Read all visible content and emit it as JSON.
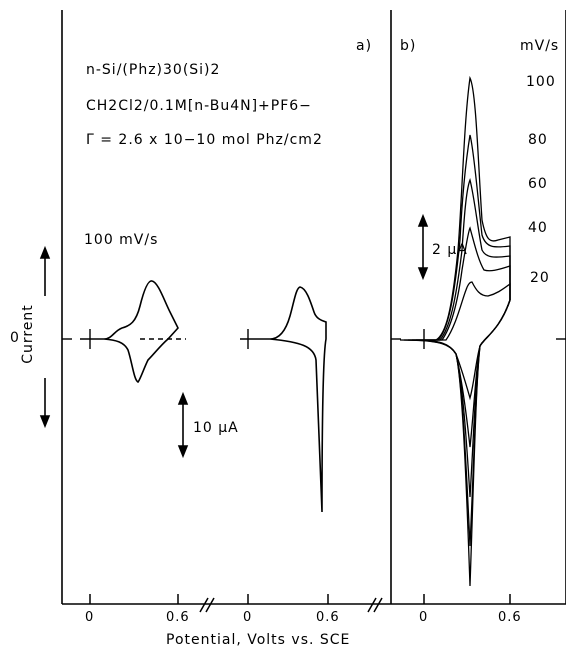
{
  "chart_data": [
    {
      "type": "line",
      "panel_label": "a)",
      "annotations": {
        "line1": "n-Si/(Phz)30(Si)2",
        "line2": "CH2Cl2/0.1M[n-Bu4N]+PF6−",
        "line3": "Γ = 2.6 x 10−10 mol Phz/cm2",
        "scan_rate": "100 mV/s",
        "scale_bar": "10 μA"
      },
      "xlabel": "Potential, Volts vs. SCE",
      "ylabel": "Current",
      "y_zero_label": "0",
      "x_ticks": [
        "0",
        "0.6",
        "0",
        "0.6"
      ],
      "series": [
        {
          "x": [
            0.0,
            0.15,
            0.25,
            0.35,
            0.42,
            0.48,
            0.55,
            0.6,
            0.55,
            0.45,
            0.35,
            0.3,
            0.25,
            0.15,
            0.0
          ],
          "y": [
            0,
            0.05,
            0.3,
            1.5,
            3.0,
            2.2,
            1.0,
            0.7,
            0.4,
            -0.2,
            -1.2,
            -2.4,
            -1.0,
            -0.1,
            0
          ]
        },
        {
          "x": [
            0.0,
            0.2,
            0.3,
            0.38,
            0.44,
            0.5,
            0.55,
            0.56,
            0.55,
            0.5,
            0.4,
            0.3,
            0.2,
            0.0
          ],
          "y": [
            0,
            0.05,
            0.5,
            2.0,
            2.6,
            2.0,
            1.2,
            -1.0,
            -9.0,
            -0.3,
            -0.1,
            -0.05,
            0,
            0
          ]
        }
      ]
    },
    {
      "type": "line",
      "panel_label": "b)",
      "legend_title": "mV/s",
      "scale_bar": "2 μA",
      "x_ticks": [
        "0",
        "0.6"
      ],
      "series": [
        {
          "name": "100",
          "peak_anodic": 13.2,
          "peak_cathodic": -12.5
        },
        {
          "name": "80",
          "peak_anodic": 10.5,
          "peak_cathodic": -10.0
        },
        {
          "name": "60",
          "peak_anodic": 8.2,
          "peak_cathodic": -7.8
        },
        {
          "name": "40",
          "peak_anodic": 5.8,
          "peak_cathodic": -5.5
        },
        {
          "name": "20",
          "peak_anodic": 3.2,
          "peak_cathodic": -3.0
        }
      ]
    }
  ]
}
